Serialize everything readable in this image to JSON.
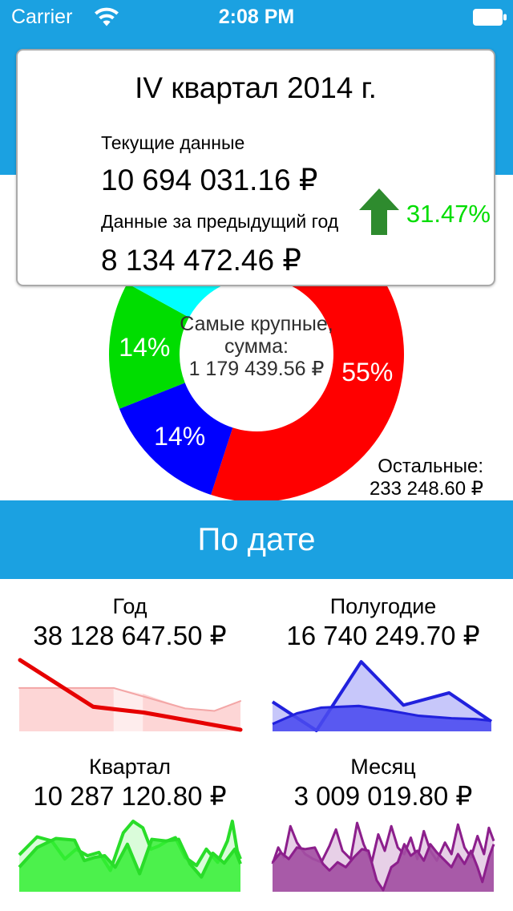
{
  "status_bar": {
    "carrier": "Carrier",
    "time": "2:08 PM",
    "icons": [
      "wifi-icon",
      "battery-icon"
    ]
  },
  "colors": {
    "accent_blue": "#1ba1e1",
    "current_red": "#f96a6a",
    "previous_pink": "#fcd2d2",
    "positive_green": "#00dd00",
    "arrow_green": "#2e8b2e"
  },
  "summary_card": {
    "title": "IV квартал 2014 г.",
    "current": {
      "label": "Текущие данные",
      "value": "10 694 031.16 ₽",
      "swatch_color": "#f96a6a"
    },
    "previous": {
      "label": "Данные за предыдущий год",
      "value": "8 134 472.46 ₽",
      "swatch_color": "#fcd2d2"
    },
    "change": {
      "value": "31.47%",
      "direction": "up",
      "icon": "up-arrow-icon"
    }
  },
  "date_section": {
    "header": "По дате"
  },
  "chart_data": [
    {
      "id": "structure-donut",
      "type": "donut",
      "geometry": {
        "outer_radius": 184,
        "inner_radius": 96
      },
      "center_label": {
        "line1": "Самые крупные,",
        "line2": "сумма:",
        "line3": "1 179 439.56 ₽"
      },
      "segments": [
        {
          "label": "55%",
          "pct": 55,
          "color": "#ff0000"
        },
        {
          "label": "14%",
          "pct": 14,
          "color": "#0000ff"
        },
        {
          "label": "14%",
          "pct": 14,
          "color": "#00dd00"
        },
        {
          "label": "",
          "pct": 17,
          "color": "#00ffff"
        }
      ],
      "annotation": {
        "label": "Остальные:",
        "value": "233 248.60 ₽"
      }
    },
    {
      "id": "year",
      "type": "area",
      "title": "Год",
      "value": "38 128 647.50 ₽",
      "baseline": 92,
      "series": [
        {
          "type": "polygon",
          "points": [
            [
              0,
              39
            ],
            [
              116,
              39
            ],
            [
              116,
              92
            ],
            [
              0,
              92
            ]
          ],
          "fill": "#f76d6d",
          "opacity": 0.28
        },
        {
          "type": "polygon",
          "points": [
            [
              116,
              39
            ],
            [
              152,
              46
            ],
            [
              152,
              92
            ],
            [
              116,
              92
            ]
          ],
          "fill": "#f76d6d",
          "opacity": 0.12
        },
        {
          "type": "polygon",
          "points": [
            [
              152,
              46
            ],
            [
              204,
              64
            ],
            [
              240,
              67
            ],
            [
              272,
              55
            ],
            [
              272,
              92
            ],
            [
              152,
              92
            ]
          ],
          "fill": "#f76d6d",
          "opacity": 0.28
        },
        {
          "type": "line",
          "points": [
            [
              0,
              39
            ],
            [
              116,
              39
            ],
            [
              204,
              64
            ],
            [
              240,
              67
            ],
            [
              272,
              55
            ]
          ],
          "stroke": "#f3a6a6",
          "width": 2
        },
        {
          "type": "line",
          "points": [
            [
              1,
              5
            ],
            [
              91,
              62
            ],
            [
              153,
              69
            ],
            [
              272,
              90
            ]
          ],
          "stroke": "#e60000",
          "width": 5
        }
      ]
    },
    {
      "id": "halfyear",
      "type": "area",
      "title": "Полугодие",
      "value": "16 740 249.70 ₽",
      "baseline": 92,
      "series": [
        {
          "type": "area",
          "points": [
            [
              0,
              56
            ],
            [
              54,
              91
            ],
            [
              109,
              7
            ],
            [
              161,
              60
            ],
            [
              217,
              45
            ],
            [
              269,
              80
            ]
          ],
          "fill": "#4444ee",
          "opacity": 0.3,
          "stroke": "#2121dd",
          "width": 4
        },
        {
          "type": "area",
          "points": [
            [
              0,
              83
            ],
            [
              30,
              70
            ],
            [
              60,
              63
            ],
            [
              106,
              61
            ],
            [
              140,
              66
            ],
            [
              180,
              73
            ],
            [
              220,
              76
            ],
            [
              250,
              77
            ],
            [
              269,
              79
            ]
          ],
          "fill": "#4a4aef",
          "opacity": 0.88,
          "stroke": "#2121dd",
          "width": 3
        }
      ]
    },
    {
      "id": "quarter",
      "type": "area",
      "title": "Квартал",
      "value": "10 287 120.80 ₽",
      "baseline": 92,
      "series": [
        {
          "type": "area",
          "points": [
            [
              0,
              47
            ],
            [
              22,
              25
            ],
            [
              40,
              30
            ],
            [
              56,
              52
            ],
            [
              70,
              40
            ],
            [
              84,
              48
            ],
            [
              98,
              44
            ],
            [
              112,
              66
            ],
            [
              128,
              20
            ],
            [
              140,
              6
            ],
            [
              152,
              14
            ],
            [
              162,
              40
            ],
            [
              172,
              36
            ],
            [
              182,
              30
            ],
            [
              192,
              26
            ],
            [
              204,
              50
            ],
            [
              218,
              60
            ],
            [
              230,
              40
            ],
            [
              244,
              56
            ],
            [
              256,
              30
            ],
            [
              262,
              6
            ],
            [
              268,
              42
            ],
            [
              272,
              52
            ]
          ],
          "fill": "#33ee33",
          "opacity": 0.18,
          "stroke": "#29dd29",
          "width": 4
        },
        {
          "type": "area",
          "points": [
            [
              0,
              62
            ],
            [
              22,
              38
            ],
            [
              45,
              27
            ],
            [
              68,
              29
            ],
            [
              80,
              54
            ],
            [
              93,
              50
            ],
            [
              105,
              48
            ],
            [
              118,
              62
            ],
            [
              133,
              34
            ],
            [
              148,
              70
            ],
            [
              163,
              28
            ],
            [
              180,
              30
            ],
            [
              196,
              28
            ],
            [
              210,
              58
            ],
            [
              224,
              74
            ],
            [
              238,
              45
            ],
            [
              252,
              57
            ],
            [
              265,
              40
            ],
            [
              272,
              58
            ]
          ],
          "fill": "#33ee33",
          "opacity": 0.85,
          "stroke": "#29dd29",
          "width": 4
        }
      ]
    },
    {
      "id": "month",
      "type": "area",
      "title": "Месяц",
      "value": "3 009 019.80 ₽",
      "baseline": 92,
      "series": [
        {
          "type": "area",
          "points": [
            [
              0,
              58
            ],
            [
              7,
              38
            ],
            [
              14,
              50
            ],
            [
              22,
              12
            ],
            [
              30,
              32
            ],
            [
              40,
              46
            ],
            [
              50,
              52
            ],
            [
              60,
              56
            ],
            [
              70,
              36
            ],
            [
              78,
              16
            ],
            [
              86,
              42
            ],
            [
              96,
              52
            ],
            [
              104,
              8
            ],
            [
              112,
              34
            ],
            [
              122,
              56
            ],
            [
              130,
              22
            ],
            [
              138,
              42
            ],
            [
              146,
              12
            ],
            [
              154,
              38
            ],
            [
              162,
              46
            ],
            [
              170,
              26
            ],
            [
              178,
              52
            ],
            [
              186,
              18
            ],
            [
              194,
              42
            ],
            [
              202,
              54
            ],
            [
              212,
              32
            ],
            [
              220,
              46
            ],
            [
              228,
              10
            ],
            [
              236,
              38
            ],
            [
              244,
              50
            ],
            [
              252,
              24
            ],
            [
              260,
              46
            ],
            [
              266,
              14
            ],
            [
              272,
              30
            ]
          ],
          "fill": "#b065b0",
          "opacity": 0.3,
          "stroke": "#8c1f8c",
          "width": 3
        },
        {
          "type": "area",
          "points": [
            [
              0,
              56
            ],
            [
              10,
              44
            ],
            [
              20,
              52
            ],
            [
              30,
              38
            ],
            [
              40,
              40
            ],
            [
              52,
              38
            ],
            [
              62,
              58
            ],
            [
              70,
              66
            ],
            [
              80,
              56
            ],
            [
              90,
              62
            ],
            [
              100,
              50
            ],
            [
              110,
              40
            ],
            [
              118,
              42
            ],
            [
              128,
              78
            ],
            [
              136,
              90
            ],
            [
              146,
              62
            ],
            [
              154,
              56
            ],
            [
              162,
              34
            ],
            [
              170,
              48
            ],
            [
              178,
              42
            ],
            [
              186,
              54
            ],
            [
              194,
              34
            ],
            [
              202,
              44
            ],
            [
              210,
              52
            ],
            [
              220,
              62
            ],
            [
              228,
              46
            ],
            [
              236,
              58
            ],
            [
              244,
              42
            ],
            [
              252,
              62
            ],
            [
              258,
              80
            ],
            [
              266,
              50
            ],
            [
              272,
              34
            ]
          ],
          "fill": "#a34fa3",
          "opacity": 0.92,
          "stroke": "#8c1f8c",
          "width": 3
        }
      ]
    }
  ]
}
